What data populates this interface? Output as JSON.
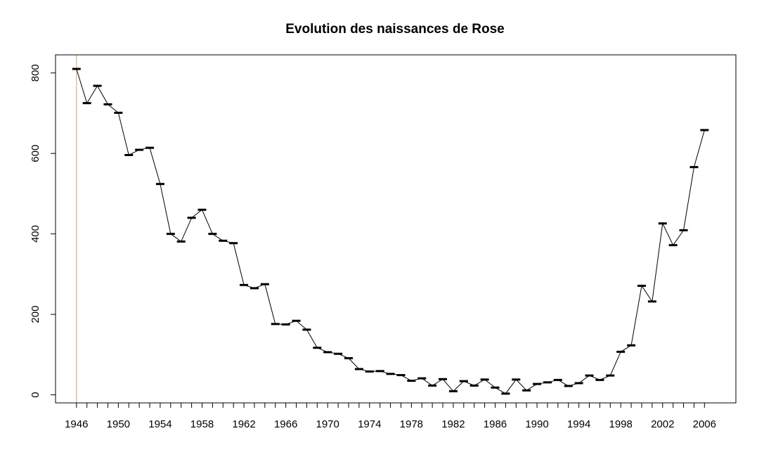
{
  "chart_data": {
    "type": "line",
    "title": "Evolution des naissances de Rose",
    "xlabel": "",
    "ylabel": "",
    "xlim": [
      1944,
      2009
    ],
    "ylim": [
      -20,
      845
    ],
    "x_ticks": [
      1946,
      1950,
      1954,
      1958,
      1962,
      1966,
      1970,
      1974,
      1978,
      1982,
      1986,
      1990,
      1994,
      1998,
      2002,
      2006
    ],
    "y_ticks": [
      0,
      200,
      400,
      600,
      800
    ],
    "grid": false,
    "legend": "none",
    "series": [
      {
        "x": [
          1946,
          1947,
          1948,
          1949,
          1950,
          1951,
          1952,
          1953,
          1954,
          1955,
          1956,
          1957,
          1958,
          1959,
          1960,
          1961,
          1962,
          1963,
          1964,
          1965,
          1966,
          1967,
          1968,
          1969,
          1970,
          1971,
          1972,
          1973,
          1974,
          1975,
          1976,
          1977,
          1978,
          1979,
          1980,
          1981,
          1982,
          1983,
          1984,
          1985,
          1986,
          1987,
          1988,
          1989,
          1990,
          1991,
          1992,
          1993,
          1994,
          1995,
          1996,
          1997,
          1998,
          1999,
          2000,
          2001,
          2002,
          2003,
          2004,
          2005,
          2006
        ],
        "values": [
          810,
          725,
          768,
          722,
          701,
          596,
          609,
          614,
          524,
          400,
          381,
          440,
          460,
          400,
          383,
          377,
          273,
          265,
          275,
          176,
          175,
          184,
          162,
          117,
          106,
          102,
          91,
          64,
          58,
          59,
          52,
          49,
          35,
          41,
          23,
          39,
          9,
          34,
          23,
          38,
          18,
          3,
          38,
          11,
          27,
          31,
          37,
          22,
          29,
          48,
          37,
          48,
          107,
          123,
          271,
          232,
          426,
          372,
          409,
          566,
          658
        ]
      }
    ],
    "reference_line": {
      "x": 1946,
      "color": "#d2c3b0"
    },
    "colors": {
      "line": "#000000",
      "axis": "#000000",
      "background": "#ffffff"
    }
  }
}
